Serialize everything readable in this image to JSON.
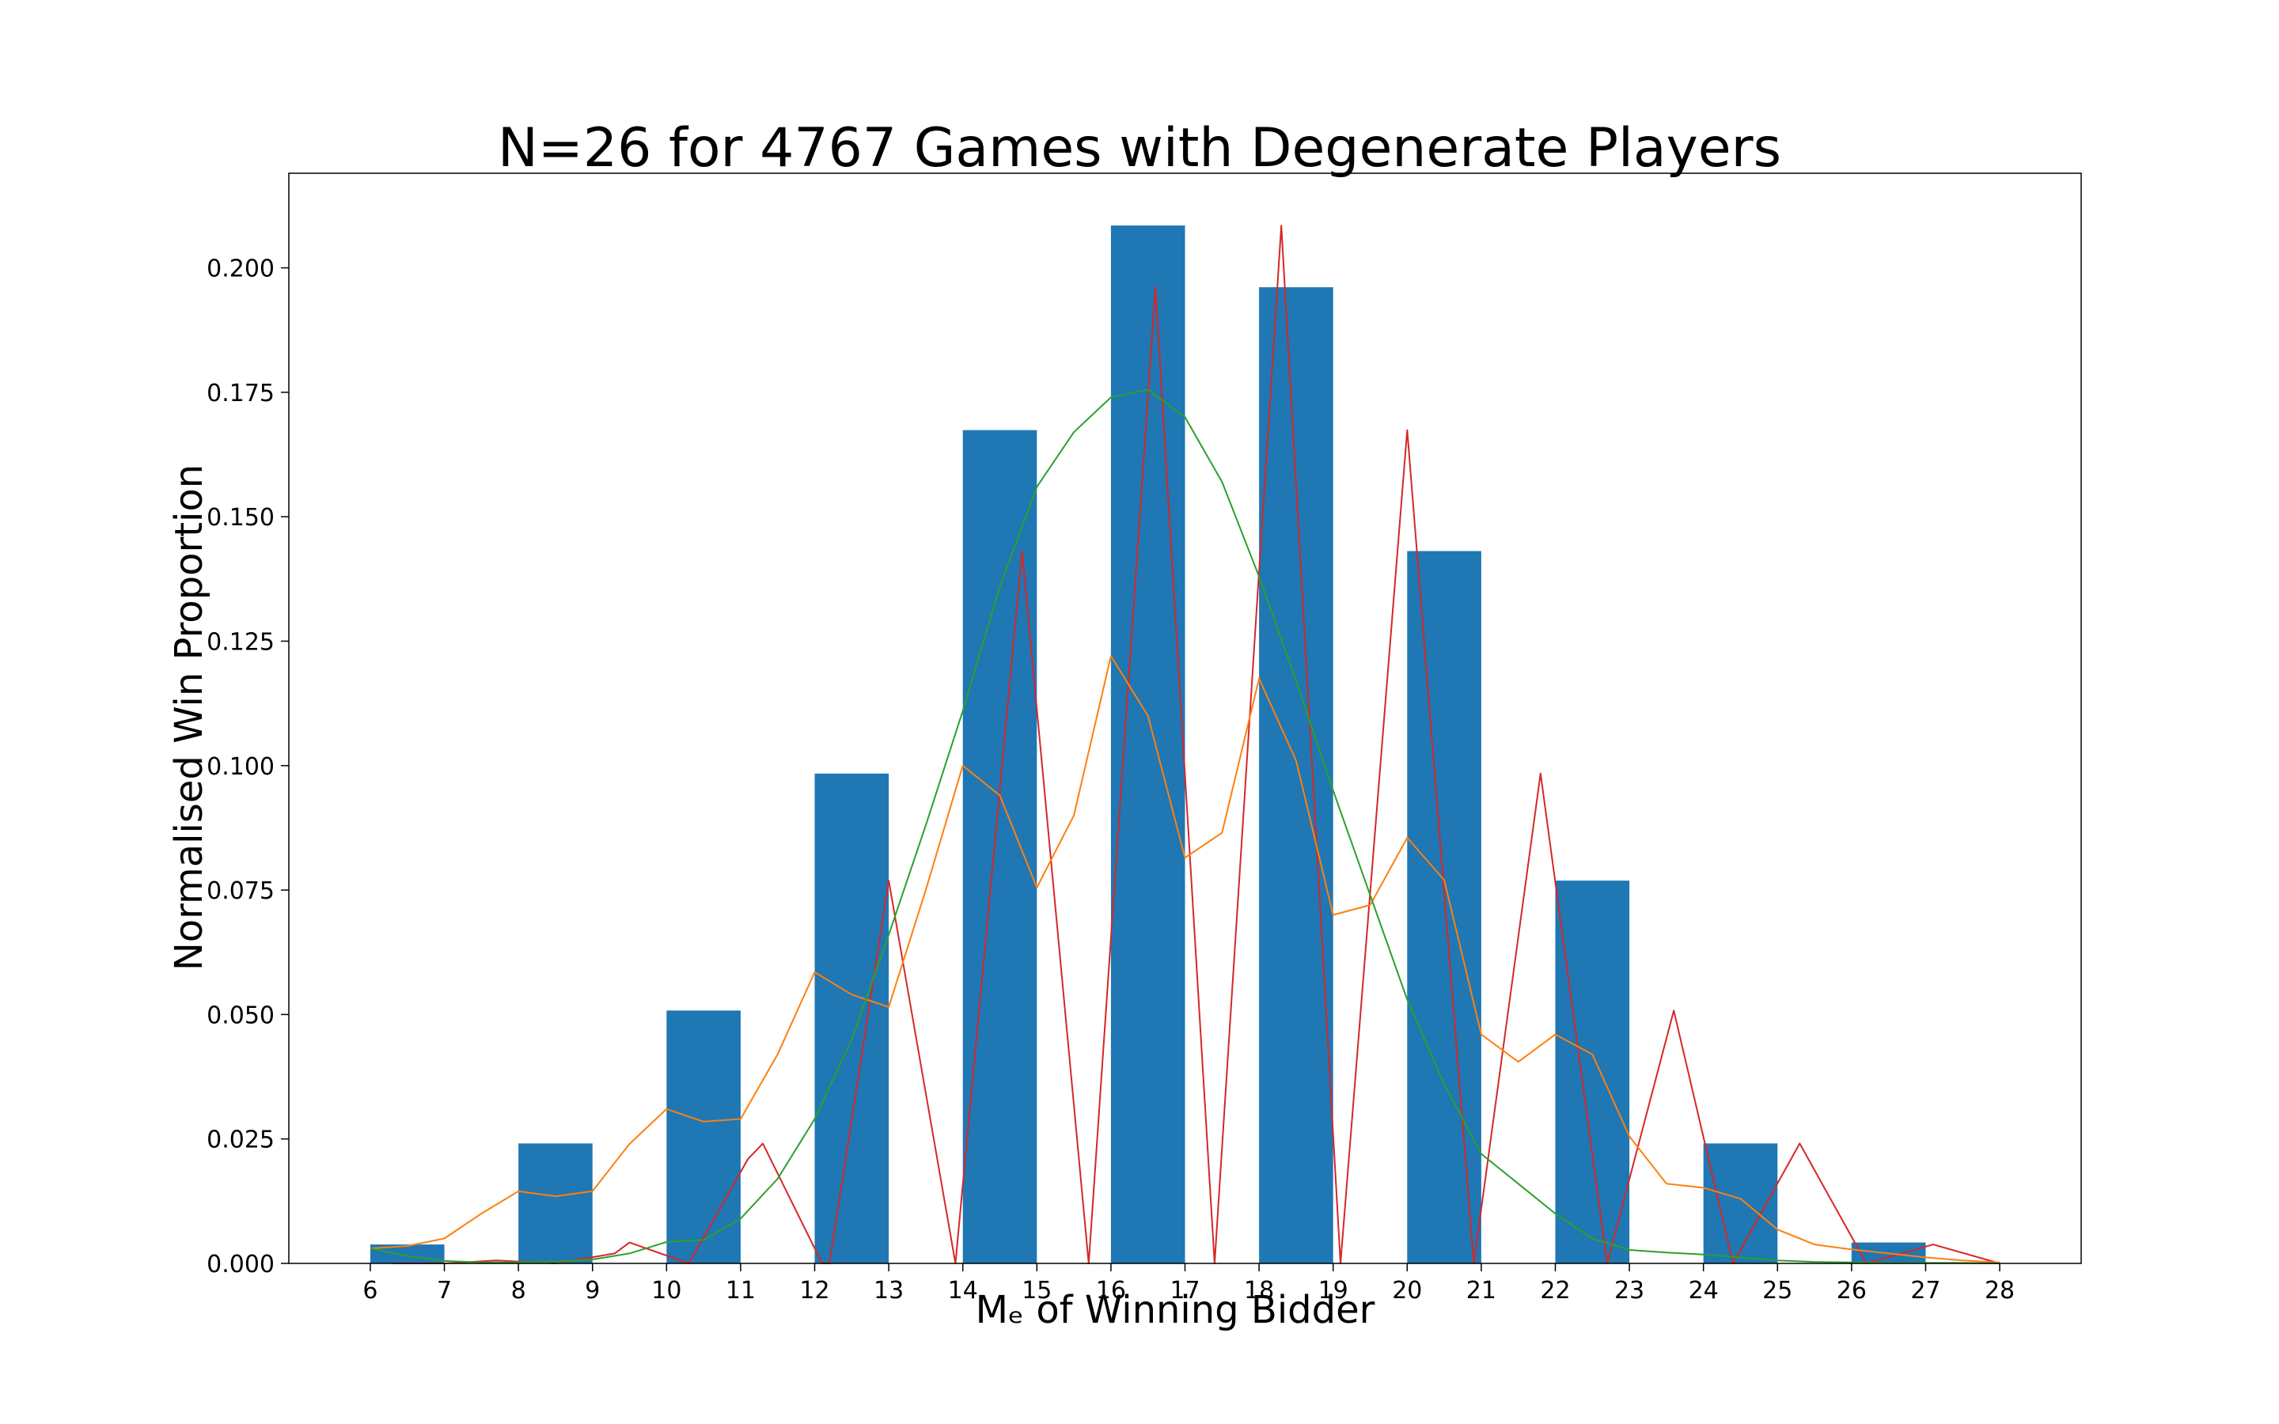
{
  "chart_data": {
    "type": "bar",
    "title": "N=26 for 4767 Games with Degenerate Players",
    "xlabel": "Mₑ of Winning Bidder",
    "ylabel": "Normalised Win Proportion",
    "xlim": [
      4.9,
      29.1
    ],
    "ylim": [
      0,
      0.219
    ],
    "xticks": [
      6,
      7,
      8,
      9,
      10,
      11,
      12,
      13,
      14,
      15,
      16,
      17,
      18,
      19,
      20,
      21,
      22,
      23,
      24,
      25,
      26,
      27,
      28
    ],
    "yticks": [
      0.0,
      0.025,
      0.05,
      0.075,
      0.1,
      0.125,
      0.15,
      0.175,
      0.2
    ],
    "ytick_labels": [
      "0.000",
      "0.025",
      "0.050",
      "0.075",
      "0.100",
      "0.125",
      "0.150",
      "0.175",
      "0.200"
    ],
    "grid": false,
    "bars": {
      "color": "#1f77b4",
      "x_left": [
        6,
        8,
        10,
        12,
        14,
        16,
        18,
        20,
        22,
        24,
        26
      ],
      "width": 1,
      "values": [
        0.0038,
        0.0241,
        0.0508,
        0.0984,
        0.1674,
        0.2085,
        0.1961,
        0.1431,
        0.0769,
        0.0241,
        0.0042
      ]
    },
    "series": [
      {
        "color": "#d62728",
        "type": "line",
        "x": [
          6.3,
          7.0,
          7.7,
          8.5,
          9.3,
          9.5,
          10.3,
          11.1,
          11.3,
          12.1,
          12.2,
          13.0,
          13.9,
          14.8,
          15.7,
          16.6,
          17.4,
          18.3,
          19.1,
          20.0,
          20.9,
          21.8,
          22.7,
          23.6,
          24.4,
          25.3,
          26.2,
          27.1,
          28.0
        ],
        "y": [
          0.0,
          0.0,
          0.0006,
          0.0,
          0.002,
          0.0042,
          0.0,
          0.021,
          0.0241,
          0.0,
          0.0,
          0.0769,
          0.0,
          0.1431,
          0.0,
          0.1961,
          0.0,
          0.2085,
          0.0,
          0.1674,
          0.0,
          0.0984,
          0.0,
          0.0508,
          0.0,
          0.0241,
          0.0,
          0.0038,
          0.0
        ]
      },
      {
        "color": "#ff7f0e",
        "type": "line",
        "x": [
          6,
          6.5,
          7,
          7.5,
          8,
          8.5,
          9,
          9.5,
          10,
          10.5,
          11,
          11.5,
          12,
          12.5,
          13,
          13.5,
          14,
          14.5,
          15,
          15.5,
          16,
          16.5,
          17,
          17.5,
          18,
          18.5,
          19,
          19.5,
          20,
          20.5,
          21,
          21.5,
          22,
          22.5,
          23,
          23.5,
          24,
          24.5,
          25,
          25.5,
          26,
          26.5,
          27,
          27.5,
          28
        ],
        "y": [
          0.003,
          0.0035,
          0.005,
          0.01,
          0.0145,
          0.0135,
          0.0145,
          0.024,
          0.031,
          0.0285,
          0.029,
          0.042,
          0.0585,
          0.054,
          0.0515,
          0.075,
          0.1,
          0.094,
          0.0755,
          0.09,
          0.122,
          0.11,
          0.0815,
          0.0865,
          0.1175,
          0.101,
          0.07,
          0.072,
          0.0855,
          0.077,
          0.046,
          0.0405,
          0.046,
          0.042,
          0.0255,
          0.016,
          0.0152,
          0.013,
          0.0068,
          0.0038,
          0.0028,
          0.002,
          0.0012,
          0.0006,
          0.0002
        ]
      },
      {
        "color": "#2ca02c",
        "type": "line",
        "x": [
          6,
          6.5,
          7,
          7.5,
          8,
          8.5,
          9,
          9.5,
          10,
          10.5,
          11,
          11.5,
          12,
          12.5,
          13,
          13.5,
          14,
          14.5,
          15,
          15.5,
          16,
          16.5,
          17,
          17.5,
          18,
          18.5,
          19,
          19.5,
          20,
          20.5,
          21,
          21.5,
          22,
          22.5,
          23,
          23.5,
          24,
          24.5,
          25,
          25.5,
          26,
          26.5,
          27,
          27.5,
          28
        ],
        "y": [
          0.003,
          0.0015,
          0.0005,
          0.0002,
          0.0002,
          0.0003,
          0.0008,
          0.002,
          0.0043,
          0.0047,
          0.009,
          0.017,
          0.029,
          0.045,
          0.066,
          0.088,
          0.111,
          0.136,
          0.156,
          0.167,
          0.174,
          0.1755,
          0.17,
          0.157,
          0.138,
          0.117,
          0.095,
          0.074,
          0.053,
          0.036,
          0.022,
          0.016,
          0.01,
          0.005,
          0.0027,
          0.0022,
          0.0018,
          0.0012,
          0.0006,
          0.0003,
          0.0002,
          0.0001,
          0.0001,
          0.0001,
          0.0
        ]
      }
    ]
  }
}
